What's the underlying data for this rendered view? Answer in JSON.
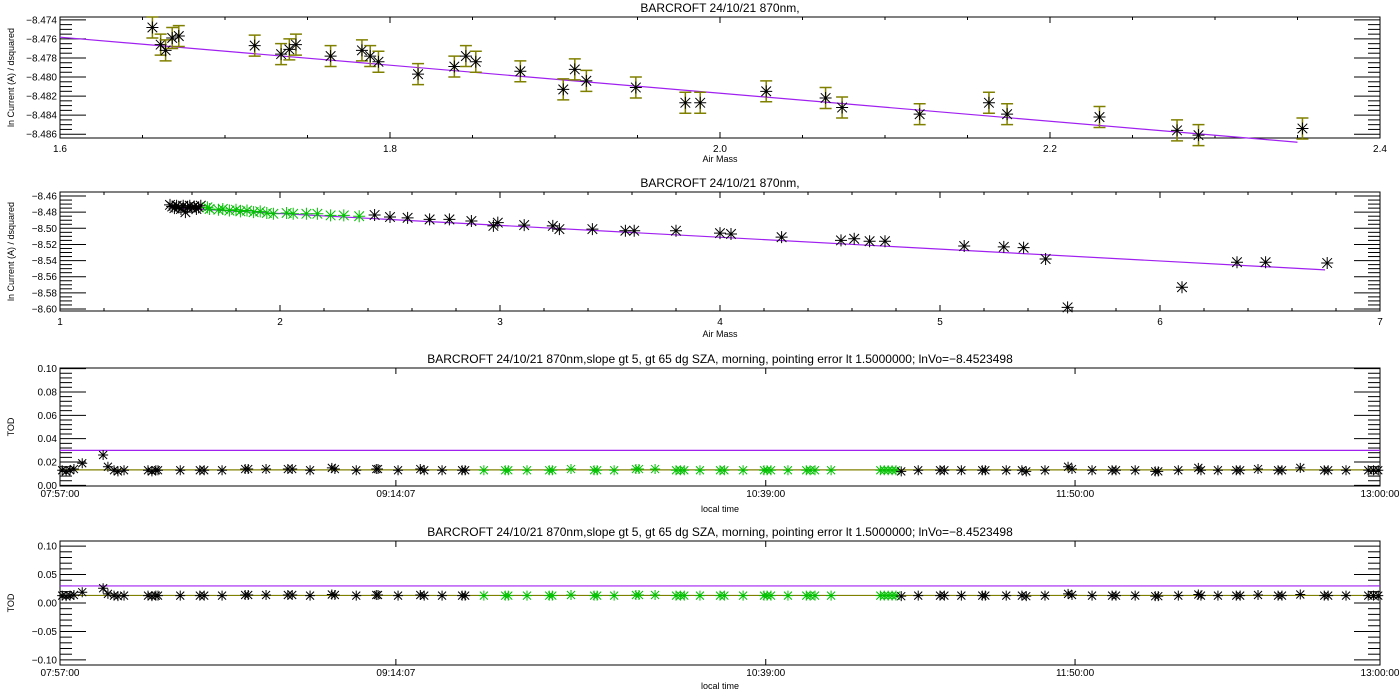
{
  "colors": {
    "fit": "#a020f0",
    "error": "#808000",
    "tod_line": "#808000",
    "threshold": "#a020f0",
    "selected": "#00c000",
    "point": "#000000",
    "axis": "#000000"
  },
  "tod_points": [
    [
      0.5,
      0.013,
      "k"
    ],
    [
      1.4,
      0.012,
      "k"
    ],
    [
      2.3,
      0.013,
      "k"
    ],
    [
      3.2,
      0.014,
      "k"
    ],
    [
      5.1,
      0.019,
      "k"
    ],
    [
      9.9,
      0.026,
      "k"
    ],
    [
      11.0,
      0.016,
      "k"
    ],
    [
      12.4,
      0.013,
      "k"
    ],
    [
      13.3,
      0.012,
      "k"
    ],
    [
      14.7,
      0.013,
      "k"
    ],
    [
      20.2,
      0.013,
      "k"
    ],
    [
      21.1,
      0.012,
      "k"
    ],
    [
      22.0,
      0.013,
      "k"
    ],
    [
      22.5,
      0.013,
      "k"
    ],
    [
      27.6,
      0.013,
      "k"
    ],
    [
      32.1,
      0.013,
      "k"
    ],
    [
      33.1,
      0.013,
      "k"
    ],
    [
      37.2,
      0.013,
      "k"
    ],
    [
      42.5,
      0.014,
      "k"
    ],
    [
      43.2,
      0.014,
      "k"
    ],
    [
      47.3,
      0.014,
      "k"
    ],
    [
      52.3,
      0.014,
      "k"
    ],
    [
      53.3,
      0.014,
      "k"
    ],
    [
      57.4,
      0.013,
      "k"
    ],
    [
      62.4,
      0.015,
      "k"
    ],
    [
      63.1,
      0.014,
      "k"
    ],
    [
      68.0,
      0.013,
      "k"
    ],
    [
      72.6,
      0.014,
      "k"
    ],
    [
      73.0,
      0.014,
      "k"
    ],
    [
      77.6,
      0.013,
      "k"
    ],
    [
      82.7,
      0.014,
      "k"
    ],
    [
      83.6,
      0.013,
      "k"
    ],
    [
      87.7,
      0.013,
      "k"
    ],
    [
      92.3,
      0.013,
      "k"
    ],
    [
      93.0,
      0.013,
      "k"
    ],
    [
      97.3,
      0.013,
      "g"
    ],
    [
      102.2,
      0.013,
      "g"
    ],
    [
      102.9,
      0.013,
      "g"
    ],
    [
      107.2,
      0.013,
      "g"
    ],
    [
      112.3,
      0.013,
      "g"
    ],
    [
      113.0,
      0.013,
      "g"
    ],
    [
      117.3,
      0.014,
      "g"
    ],
    [
      122.6,
      0.013,
      "g"
    ],
    [
      123.3,
      0.013,
      "g"
    ],
    [
      127.2,
      0.013,
      "g"
    ],
    [
      132.2,
      0.014,
      "g"
    ],
    [
      132.9,
      0.014,
      "g"
    ],
    [
      136.6,
      0.014,
      "g"
    ],
    [
      141.4,
      0.013,
      "g"
    ],
    [
      142.4,
      0.013,
      "g"
    ],
    [
      143.3,
      0.013,
      "g"
    ],
    [
      146.9,
      0.013,
      "g"
    ],
    [
      151.5,
      0.013,
      "g"
    ],
    [
      152.5,
      0.013,
      "g"
    ],
    [
      156.8,
      0.013,
      "g"
    ],
    [
      161.6,
      0.013,
      "g"
    ],
    [
      162.3,
      0.013,
      "g"
    ],
    [
      163.2,
      0.013,
      "g"
    ],
    [
      167.1,
      0.013,
      "g"
    ],
    [
      171.3,
      0.013,
      "g"
    ],
    [
      172.2,
      0.013,
      "g"
    ],
    [
      173.3,
      0.013,
      "g"
    ],
    [
      177.0,
      0.013,
      "g"
    ],
    [
      188.3,
      0.013,
      "g"
    ],
    [
      189.2,
      0.013,
      "g"
    ],
    [
      190.1,
      0.013,
      "g"
    ],
    [
      191.0,
      0.013,
      "g"
    ],
    [
      191.9,
      0.013,
      "g"
    ],
    [
      193.1,
      0.012,
      "k"
    ],
    [
      197.0,
      0.013,
      "k"
    ],
    [
      202.0,
      0.013,
      "k"
    ],
    [
      203.0,
      0.013,
      "k"
    ],
    [
      206.9,
      0.013,
      "k"
    ],
    [
      211.7,
      0.013,
      "k"
    ],
    [
      212.4,
      0.013,
      "k"
    ],
    [
      217.2,
      0.013,
      "k"
    ],
    [
      220.8,
      0.013,
      "k"
    ],
    [
      221.8,
      0.012,
      "k"
    ],
    [
      226.1,
      0.013,
      "k"
    ],
    [
      231.4,
      0.016,
      "k"
    ],
    [
      232.3,
      0.014,
      "k"
    ],
    [
      236.9,
      0.013,
      "k"
    ],
    [
      241.5,
      0.013,
      "k"
    ],
    [
      242.4,
      0.013,
      "k"
    ],
    [
      246.8,
      0.013,
      "k"
    ],
    [
      251.4,
      0.012,
      "k"
    ],
    [
      252.1,
      0.012,
      "k"
    ],
    [
      256.7,
      0.013,
      "k"
    ],
    [
      261.3,
      0.015,
      "k"
    ],
    [
      261.9,
      0.013,
      "k"
    ],
    [
      265.8,
      0.013,
      "k"
    ],
    [
      270.0,
      0.013,
      "k"
    ],
    [
      270.9,
      0.013,
      "k"
    ],
    [
      275.0,
      0.014,
      "k"
    ],
    [
      279.6,
      0.013,
      "k"
    ],
    [
      280.5,
      0.013,
      "k"
    ],
    [
      284.7,
      0.015,
      "k"
    ],
    [
      290.2,
      0.013,
      "k"
    ],
    [
      291.1,
      0.013,
      "k"
    ],
    [
      295.2,
      0.013,
      "k"
    ],
    [
      300.3,
      0.013,
      "k"
    ],
    [
      301.5,
      0.013,
      "k"
    ],
    [
      302.6,
      0.013,
      "k"
    ]
  ],
  "chart_data": [
    {
      "type": "scatter",
      "title": "BARCROFT 24/10/21 870nm,",
      "xlabel": "Air Mass",
      "ylabel": "ln Current (A) / dsquared",
      "xlim": [
        1.6,
        2.4
      ],
      "ylim": [
        -8.4864,
        -8.4737
      ],
      "xticks": [
        {
          "v": 1.6,
          "label": "1.6"
        },
        {
          "v": 1.8,
          "label": "1.8"
        },
        {
          "v": 2.0,
          "label": "2.0"
        },
        {
          "v": 2.2,
          "label": "2.2"
        },
        {
          "v": 2.4,
          "label": "2.4"
        }
      ],
      "yticks": [
        {
          "v": -8.474,
          "label": "−8.474"
        },
        {
          "v": -8.476,
          "label": "−8.476"
        },
        {
          "v": -8.478,
          "label": "−8.478"
        },
        {
          "v": -8.48,
          "label": "−8.480"
        },
        {
          "v": -8.482,
          "label": "−8.482"
        },
        {
          "v": -8.484,
          "label": "−8.484"
        },
        {
          "v": -8.486,
          "label": "−8.486"
        }
      ],
      "fit": {
        "intercept": -8.4523,
        "slope": -0.0147,
        "x_range": [
          1.6,
          2.35
        ]
      },
      "error": 0.0011,
      "points": [
        [
          1.656,
          -8.4748
        ],
        [
          1.661,
          -8.4766
        ],
        [
          1.664,
          -8.4772
        ],
        [
          1.668,
          -8.4759
        ],
        [
          1.672,
          -8.4757
        ],
        [
          1.718,
          -8.4767
        ],
        [
          1.734,
          -8.4776
        ],
        [
          1.739,
          -8.4771
        ],
        [
          1.743,
          -8.4766
        ],
        [
          1.764,
          -8.4778
        ],
        [
          1.783,
          -8.4772
        ],
        [
          1.788,
          -8.4778
        ],
        [
          1.793,
          -8.4784
        ],
        [
          1.817,
          -8.4797
        ],
        [
          1.839,
          -8.4789
        ],
        [
          1.846,
          -8.4778
        ],
        [
          1.852,
          -8.4784
        ],
        [
          1.879,
          -8.4794
        ],
        [
          1.905,
          -8.4813
        ],
        [
          1.912,
          -8.4792
        ],
        [
          1.919,
          -8.4804
        ],
        [
          1.949,
          -8.4811
        ],
        [
          1.979,
          -8.4827
        ],
        [
          1.988,
          -8.4827
        ],
        [
          2.028,
          -8.4815
        ],
        [
          2.064,
          -8.4822
        ],
        [
          2.074,
          -8.4832
        ],
        [
          2.121,
          -8.4839
        ],
        [
          2.163,
          -8.4827
        ],
        [
          2.174,
          -8.4839
        ],
        [
          2.23,
          -8.4842
        ],
        [
          2.277,
          -8.4856
        ],
        [
          2.29,
          -8.4861
        ],
        [
          2.353,
          -8.4854
        ]
      ]
    },
    {
      "type": "scatter",
      "title": "BARCROFT 24/10/21 870nm,",
      "xlabel": "Air Mass",
      "ylabel": "ln Current (A) / dsquared",
      "xlim": [
        1,
        7
      ],
      "ylim": [
        -8.6025,
        -8.455
      ],
      "xticks": [
        {
          "v": 1,
          "label": "1"
        },
        {
          "v": 2,
          "label": "2"
        },
        {
          "v": 3,
          "label": "3"
        },
        {
          "v": 4,
          "label": "4"
        },
        {
          "v": 5,
          "label": "5"
        },
        {
          "v": 6,
          "label": "6"
        },
        {
          "v": 7,
          "label": "7"
        }
      ],
      "yticks": [
        {
          "v": -8.46,
          "label": "−8.46"
        },
        {
          "v": -8.48,
          "label": "−8.48"
        },
        {
          "v": -8.5,
          "label": "−8.50"
        },
        {
          "v": -8.52,
          "label": "−8.52"
        },
        {
          "v": -8.54,
          "label": "−8.54"
        },
        {
          "v": -8.56,
          "label": "−8.56"
        },
        {
          "v": -8.58,
          "label": "−8.58"
        },
        {
          "v": -8.6,
          "label": "−8.60"
        }
      ],
      "fit": {
        "intercept": -8.4523,
        "slope": -0.0147,
        "x_range": [
          1.5,
          6.75
        ]
      },
      "points": [
        [
          1.5,
          -8.471,
          "k"
        ],
        [
          1.51,
          -8.473,
          "k"
        ],
        [
          1.52,
          -8.475,
          "k"
        ],
        [
          1.53,
          -8.472,
          "k"
        ],
        [
          1.54,
          -8.474,
          "k"
        ],
        [
          1.55,
          -8.476,
          "k"
        ],
        [
          1.56,
          -8.472,
          "k"
        ],
        [
          1.57,
          -8.48,
          "k"
        ],
        [
          1.58,
          -8.474,
          "k"
        ],
        [
          1.59,
          -8.472,
          "k"
        ],
        [
          1.6,
          -8.475,
          "k"
        ],
        [
          1.61,
          -8.473,
          "k"
        ],
        [
          1.62,
          -8.476,
          "k"
        ],
        [
          1.63,
          -8.474,
          "k"
        ],
        [
          1.64,
          -8.472,
          "k"
        ],
        [
          1.67,
          -8.474,
          "g"
        ],
        [
          1.68,
          -8.476,
          "g"
        ],
        [
          1.72,
          -8.477,
          "g"
        ],
        [
          1.74,
          -8.476,
          "g"
        ],
        [
          1.77,
          -8.478,
          "g"
        ],
        [
          1.8,
          -8.477,
          "g"
        ],
        [
          1.82,
          -8.479,
          "g"
        ],
        [
          1.85,
          -8.478,
          "g"
        ],
        [
          1.88,
          -8.48,
          "g"
        ],
        [
          1.91,
          -8.479,
          "g"
        ],
        [
          1.94,
          -8.481,
          "g"
        ],
        [
          1.97,
          -8.482,
          "g"
        ],
        [
          2.03,
          -8.481,
          "g"
        ],
        [
          2.06,
          -8.482,
          "g"
        ],
        [
          2.12,
          -8.482,
          "g"
        ],
        [
          2.17,
          -8.482,
          "g"
        ],
        [
          2.23,
          -8.484,
          "g"
        ],
        [
          2.29,
          -8.484,
          "g"
        ],
        [
          2.36,
          -8.485,
          "g"
        ],
        [
          2.43,
          -8.4835,
          "k"
        ],
        [
          2.5,
          -8.486,
          "k"
        ],
        [
          2.58,
          -8.487,
          "k"
        ],
        [
          2.68,
          -8.489,
          "k"
        ],
        [
          2.77,
          -8.489,
          "k"
        ],
        [
          2.87,
          -8.491,
          "k"
        ],
        [
          2.97,
          -8.497,
          "k"
        ],
        [
          2.99,
          -8.493,
          "k"
        ],
        [
          3.11,
          -8.496,
          "k"
        ],
        [
          3.24,
          -8.497,
          "k"
        ],
        [
          3.27,
          -8.501,
          "k"
        ],
        [
          3.42,
          -8.501,
          "k"
        ],
        [
          3.57,
          -8.503,
          "k"
        ],
        [
          3.61,
          -8.503,
          "k"
        ],
        [
          3.8,
          -8.503,
          "k"
        ],
        [
          4.0,
          -8.506,
          "k"
        ],
        [
          4.05,
          -8.507,
          "k"
        ],
        [
          4.28,
          -8.511,
          "k"
        ],
        [
          4.55,
          -8.515,
          "k"
        ],
        [
          4.61,
          -8.513,
          "k"
        ],
        [
          4.68,
          -8.516,
          "k"
        ],
        [
          4.75,
          -8.516,
          "k"
        ],
        [
          5.11,
          -8.522,
          "k"
        ],
        [
          5.29,
          -8.523,
          "k"
        ],
        [
          5.38,
          -8.524,
          "k"
        ],
        [
          5.48,
          -8.538,
          "k"
        ],
        [
          5.58,
          -8.598,
          "k"
        ],
        [
          6.1,
          -8.573,
          "k"
        ],
        [
          6.35,
          -8.542,
          "k"
        ],
        [
          6.48,
          -8.542,
          "k"
        ],
        [
          6.76,
          -8.543,
          "k"
        ]
      ]
    },
    {
      "type": "scatter",
      "title": "BARCROFT 24/10/21 870nm,slope gt 5, gt 65 dg SZA, morning, pointing error lt 1.5000000; lnVo=−8.4523498",
      "xlabel": "local time",
      "ylabel": "TOD",
      "xlim": [
        0,
        303
      ],
      "ylim": [
        -0.0005,
        0.1005
      ],
      "xticks": [
        {
          "v": 0,
          "label": "07:57:00"
        },
        {
          "v": 77.1,
          "label": "09:14:07"
        },
        {
          "v": 162,
          "label": "10:39:00"
        },
        {
          "v": 233,
          "label": "11:50:00"
        },
        {
          "v": 303,
          "label": "13:00:00"
        }
      ],
      "yticks": [
        {
          "v": 0,
          "label": "0.00"
        },
        {
          "v": 0.02,
          "label": "0.02"
        },
        {
          "v": 0.04,
          "label": "0.04"
        },
        {
          "v": 0.06,
          "label": "0.06"
        },
        {
          "v": 0.08,
          "label": "0.08"
        },
        {
          "v": 0.1,
          "label": "0.10"
        }
      ],
      "hlines": {
        "threshold": 0.03,
        "mean": 0.0133
      }
    },
    {
      "type": "scatter",
      "title": "BARCROFT 24/10/21 870nm,slope gt 5, gt 65 dg SZA, morning, pointing error lt 1.5000000; lnVo=−8.4523498",
      "xlabel": "local time",
      "ylabel": "TOD",
      "xlim": [
        0,
        303
      ],
      "ylim": [
        -0.109,
        0.109
      ],
      "xticks": [
        {
          "v": 0,
          "label": "07:57:00"
        },
        {
          "v": 77.1,
          "label": "09:14:07"
        },
        {
          "v": 162,
          "label": "10:39:00"
        },
        {
          "v": 233,
          "label": "11:50:00"
        },
        {
          "v": 303,
          "label": "13:00:00"
        }
      ],
      "yticks": [
        {
          "v": -0.1,
          "label": "−0.10"
        },
        {
          "v": -0.05,
          "label": "−0.05"
        },
        {
          "v": 0,
          "label": "0.00"
        },
        {
          "v": 0.05,
          "label": "0.05"
        },
        {
          "v": 0.1,
          "label": "0.10"
        }
      ],
      "hlines": {
        "threshold": 0.03,
        "mean": 0.0133
      }
    }
  ]
}
